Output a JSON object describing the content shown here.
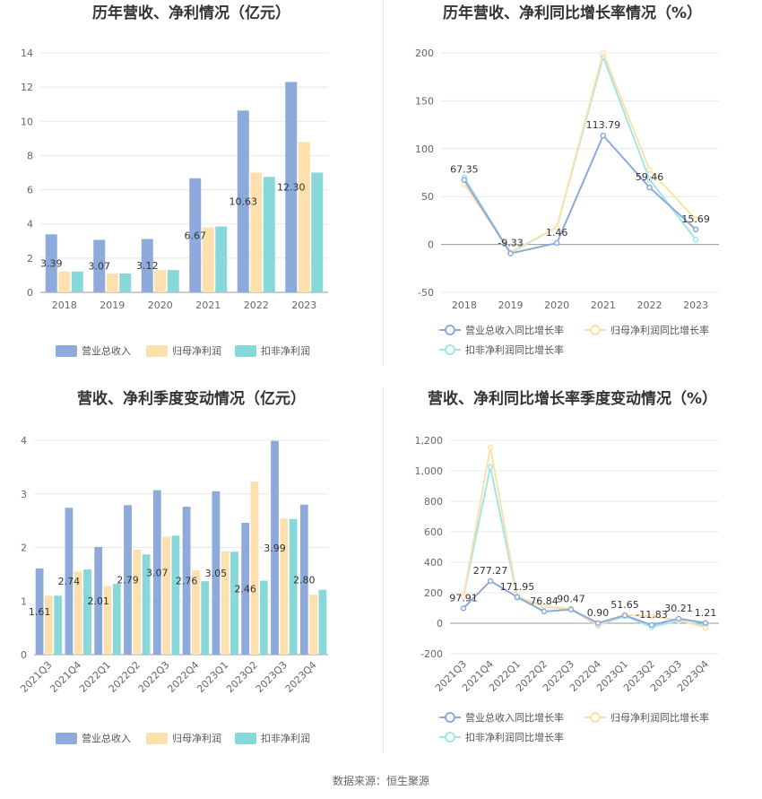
{
  "source_text": "数据来源：恒生聚源",
  "colors": {
    "revenue": "#8eaadb",
    "net_profit": "#fde0ad",
    "deducted_profit": "#88d7d9",
    "revenue_line": "#8eaadb",
    "net_line": "#fde0ad",
    "deducted_line": "#a0e6e3"
  },
  "chart_data": [
    {
      "type": "bar",
      "title": "历年营收、净利情况（亿元）",
      "categories": [
        "2018",
        "2019",
        "2020",
        "2021",
        "2022",
        "2023"
      ],
      "ylim": [
        0,
        14
      ],
      "yticks": [
        0,
        2,
        4,
        6,
        8,
        10,
        12,
        14
      ],
      "grid": true,
      "legend_placement": "bottom",
      "series": [
        {
          "name": "营业总收入",
          "values": [
            3.39,
            3.07,
            3.12,
            6.67,
            10.63,
            12.3
          ],
          "labels": [
            "3.39",
            "3.07",
            "3.12",
            "6.67",
            "10.63",
            "12.30"
          ]
        },
        {
          "name": "归母净利润",
          "values": [
            1.22,
            1.1,
            1.3,
            3.8,
            7.0,
            8.8
          ]
        },
        {
          "name": "扣非净利润",
          "values": [
            1.22,
            1.1,
            1.3,
            3.85,
            6.75,
            7.0
          ]
        }
      ]
    },
    {
      "type": "line",
      "title": "历年营收、净利同比增长率情况（%）",
      "categories": [
        "2018",
        "2019",
        "2020",
        "2021",
        "2022",
        "2023"
      ],
      "ylim": [
        -50,
        200
      ],
      "yticks": [
        -50,
        0,
        50,
        100,
        150,
        200
      ],
      "grid": true,
      "legend_placement": "bottom",
      "series": [
        {
          "name": "营业总收入同比增长率",
          "values": [
            67.35,
            -9.33,
            1.46,
            113.79,
            59.46,
            15.69
          ],
          "labels": [
            "67.35",
            "-9.33",
            "1.46",
            "113.79",
            "59.46",
            "15.69"
          ]
        },
        {
          "name": "归母净利润同比增长率",
          "values": [
            63,
            -8,
            18,
            200,
            78,
            26
          ]
        },
        {
          "name": "扣非净利润同比增长率",
          "values": [
            70,
            -9,
            18,
            196,
            68,
            5
          ]
        }
      ]
    },
    {
      "type": "bar",
      "title": "营收、净利季度变动情况（亿元）",
      "categories": [
        "2021Q3",
        "2021Q4",
        "2022Q1",
        "2022Q2",
        "2022Q3",
        "2022Q4",
        "2023Q1",
        "2023Q2",
        "2023Q3",
        "2023Q4"
      ],
      "ylim": [
        0,
        4
      ],
      "yticks": [
        0,
        1,
        2,
        3,
        4
      ],
      "grid": true,
      "legend_placement": "bottom",
      "series": [
        {
          "name": "营业总收入",
          "values": [
            1.61,
            2.74,
            2.01,
            2.79,
            3.07,
            2.76,
            3.05,
            2.46,
            3.99,
            2.8
          ],
          "labels": [
            "1.61",
            "2.74",
            "2.01",
            "2.79",
            "3.07",
            "2.76",
            "3.05",
            "2.46",
            "3.99",
            "2.80"
          ]
        },
        {
          "name": "归母净利润",
          "values": [
            1.1,
            1.55,
            1.28,
            1.96,
            2.2,
            1.57,
            1.93,
            3.23,
            2.54,
            1.12
          ]
        },
        {
          "name": "扣非净利润",
          "values": [
            1.1,
            1.59,
            1.32,
            1.87,
            2.22,
            1.37,
            1.92,
            1.38,
            2.53,
            1.21
          ]
        }
      ]
    },
    {
      "type": "line",
      "title": "营收、净利同比增长率季度变动情况（%）",
      "categories": [
        "2021Q3",
        "2021Q4",
        "2022Q1",
        "2022Q2",
        "2022Q3",
        "2022Q4",
        "2023Q1",
        "2023Q2",
        "2023Q3",
        "2023Q4"
      ],
      "ylim": [
        -200,
        1200
      ],
      "yticks": [
        -200,
        0,
        200,
        400,
        600,
        800,
        1000,
        1200
      ],
      "ytick_labels": [
        "-200",
        "0",
        "200",
        "400",
        "600",
        "800",
        "1,000",
        "1,200"
      ],
      "grid": true,
      "legend_placement": "bottom",
      "series": [
        {
          "name": "营业总收入同比增长率",
          "values": [
            97.91,
            277.27,
            171.95,
            76.84,
            90.47,
            0.9,
            51.65,
            -11.83,
            30.21,
            1.21
          ],
          "labels": [
            "97.91",
            "277.27",
            "171.95",
            "76.84",
            "90.47",
            "0.90",
            "51.65",
            "-11.83",
            "30.21",
            "1.21"
          ]
        },
        {
          "name": "归母净利润同比增长率",
          "values": [
            175,
            1155,
            175,
            110,
            95,
            -10,
            55,
            45,
            20,
            -30
          ]
        },
        {
          "name": "扣非净利润同比增长率",
          "values": [
            175,
            1025,
            168,
            110,
            90,
            -15,
            48,
            -25,
            15,
            -15
          ]
        }
      ]
    }
  ]
}
